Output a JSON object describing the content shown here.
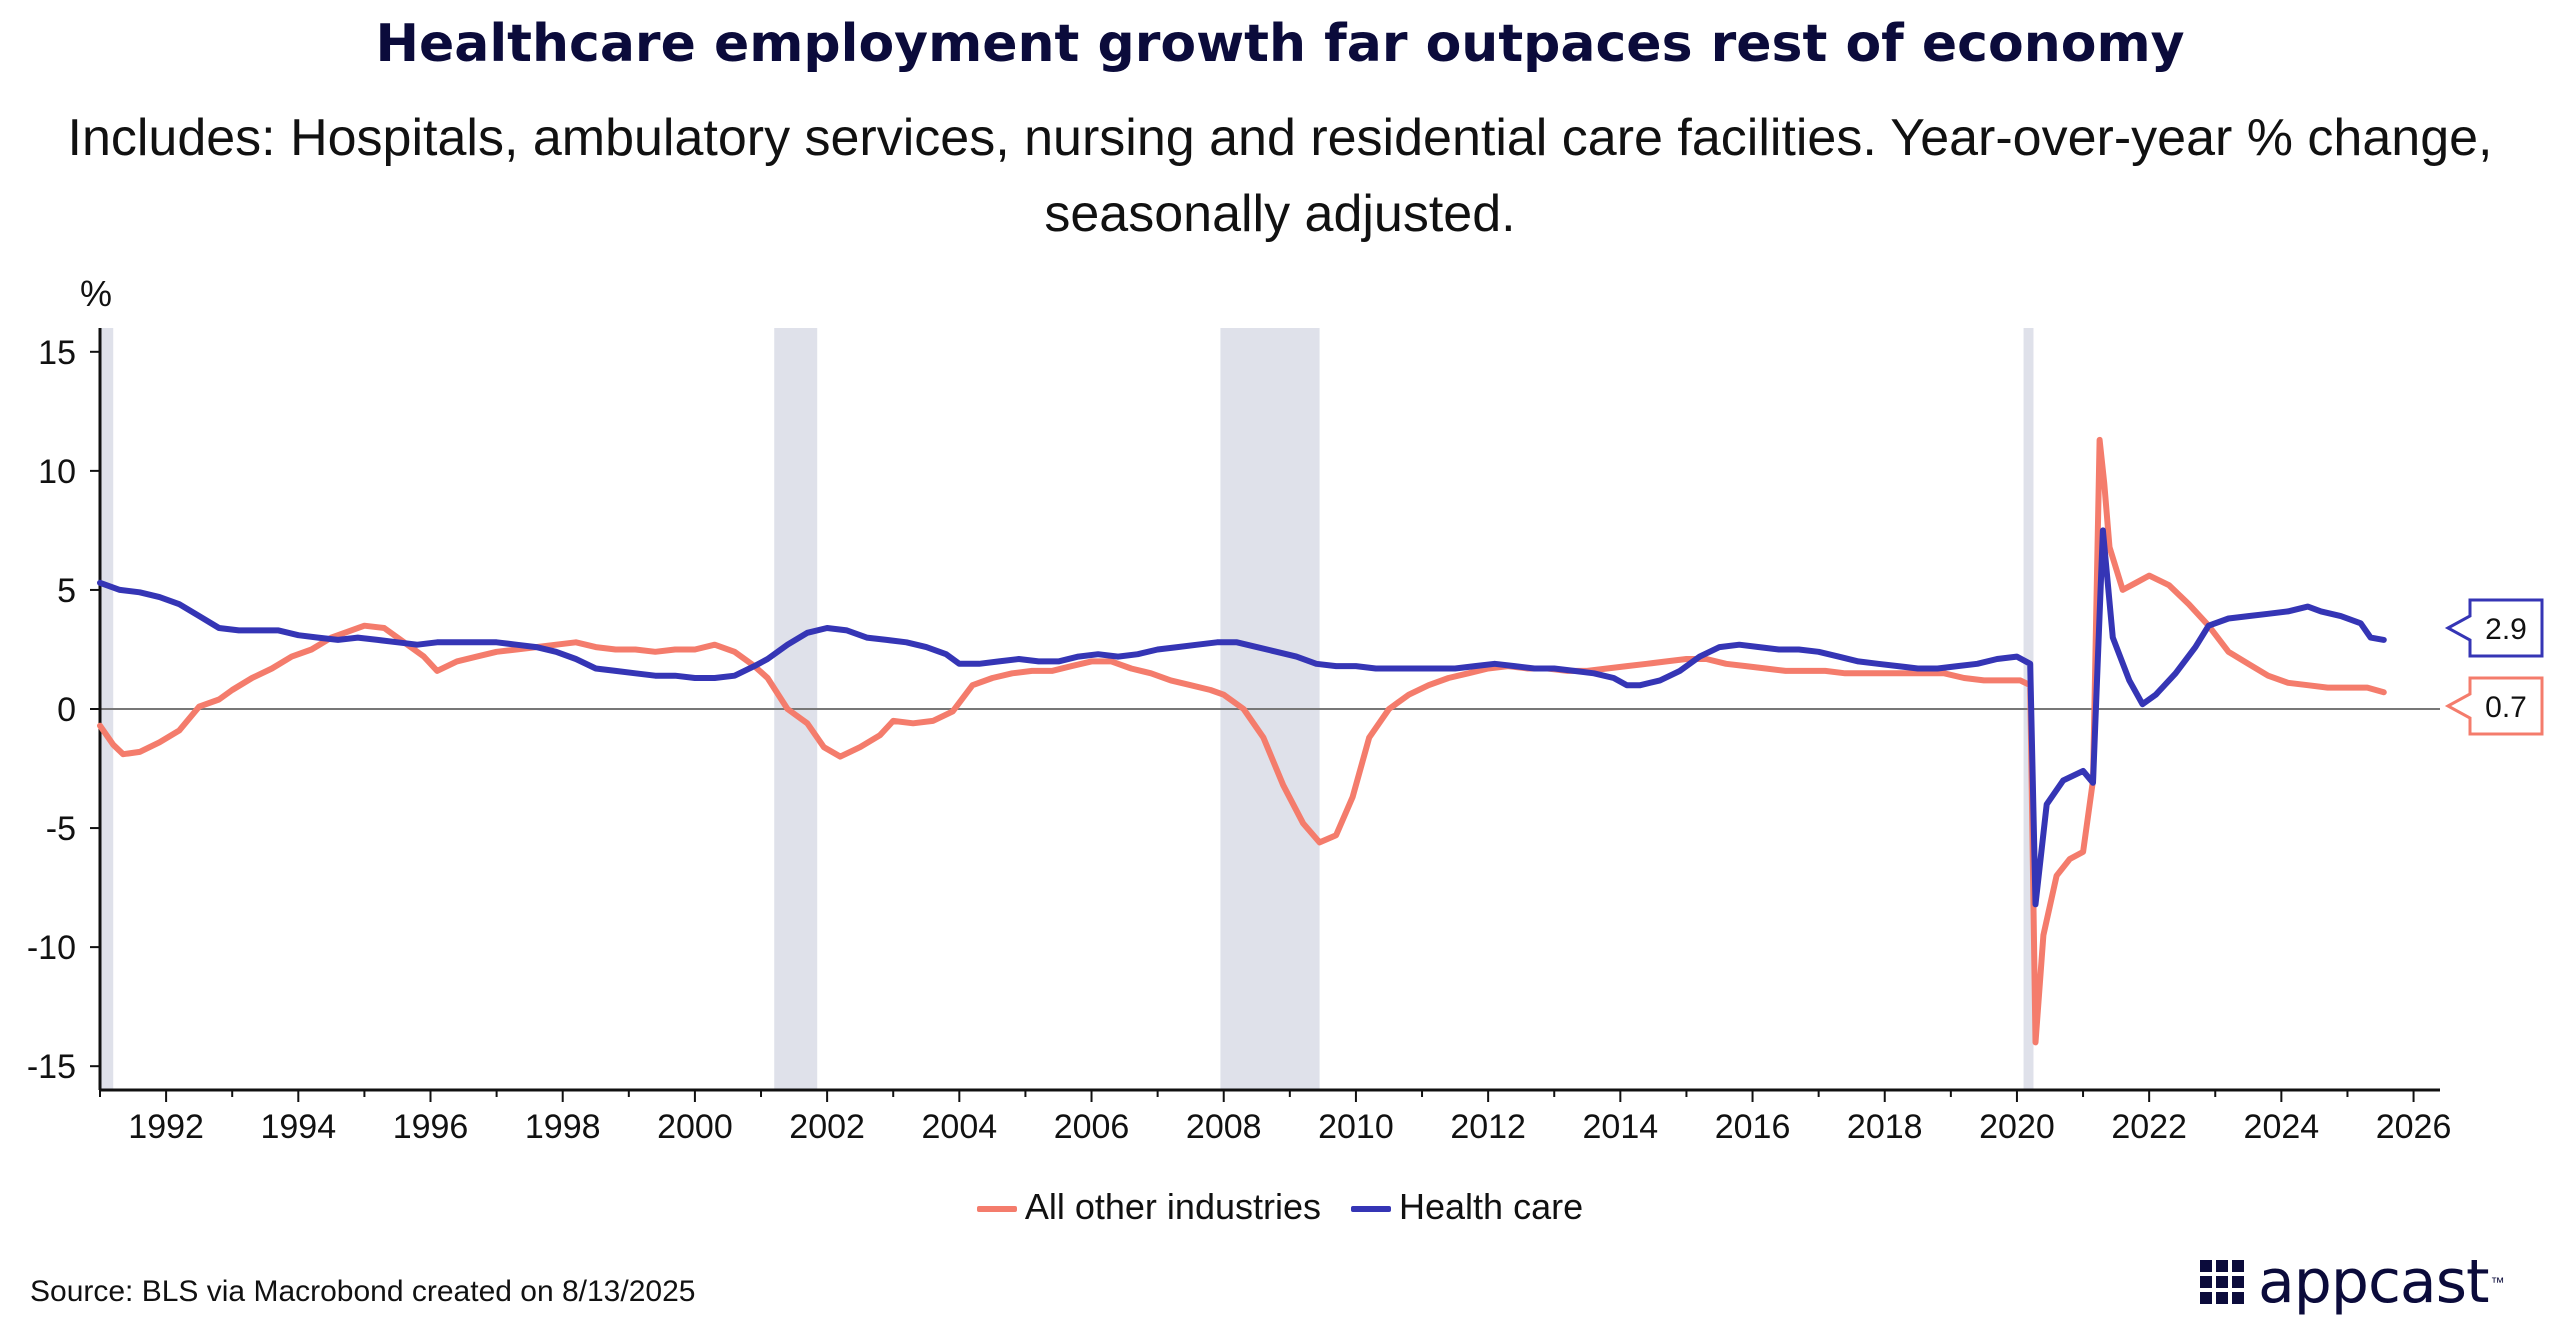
{
  "title": "Healthcare employment growth far outpaces rest of economy",
  "subtitle": "Includes: Hospitals, ambulatory services, nursing and residential care facilities. Year-over-year % change, seasonally adjusted.",
  "source": "Source: BLS via Macrobond created on 8/13/2025",
  "logo": "appcast",
  "colors": {
    "other": "#f47c6c",
    "health": "#3535b5",
    "recession": "#dfe1ea",
    "zero": "#777777"
  },
  "chart_data": {
    "type": "line",
    "y_unit": "%",
    "ylim": [
      -16,
      16
    ],
    "xlim": [
      1991.0,
      2026.4
    ],
    "y_ticks": [
      15,
      10,
      5,
      0,
      -5,
      -10,
      -15
    ],
    "x_ticks": [
      1992,
      1994,
      1996,
      1998,
      2000,
      2002,
      2004,
      2006,
      2008,
      2010,
      2012,
      2014,
      2016,
      2018,
      2020,
      2022,
      2024,
      2026
    ],
    "recessions": [
      [
        1991.0,
        1991.2
      ],
      [
        2001.2,
        2001.85
      ],
      [
        2007.95,
        2009.45
      ],
      [
        2020.1,
        2020.25
      ]
    ],
    "legend": [
      "All other industries",
      "Health care"
    ],
    "end_labels": [
      "0.7",
      "2.9"
    ],
    "series": [
      {
        "name": "All other industries",
        "color": "#f47c6c",
        "points": [
          [
            1991.0,
            -0.7
          ],
          [
            1991.2,
            -1.5
          ],
          [
            1991.35,
            -1.9
          ],
          [
            1991.6,
            -1.8
          ],
          [
            1991.9,
            -1.4
          ],
          [
            1992.2,
            -0.9
          ],
          [
            1992.5,
            0.1
          ],
          [
            1992.8,
            0.4
          ],
          [
            1993.0,
            0.8
          ],
          [
            1993.3,
            1.3
          ],
          [
            1993.6,
            1.7
          ],
          [
            1993.9,
            2.2
          ],
          [
            1994.2,
            2.5
          ],
          [
            1994.5,
            3.0
          ],
          [
            1994.8,
            3.3
          ],
          [
            1995.0,
            3.5
          ],
          [
            1995.3,
            3.4
          ],
          [
            1995.6,
            2.8
          ],
          [
            1995.9,
            2.2
          ],
          [
            1996.1,
            1.6
          ],
          [
            1996.4,
            2.0
          ],
          [
            1996.7,
            2.2
          ],
          [
            1997.0,
            2.4
          ],
          [
            1997.3,
            2.5
          ],
          [
            1997.6,
            2.6
          ],
          [
            1997.9,
            2.7
          ],
          [
            1998.2,
            2.8
          ],
          [
            1998.5,
            2.6
          ],
          [
            1998.8,
            2.5
          ],
          [
            1999.1,
            2.5
          ],
          [
            1999.4,
            2.4
          ],
          [
            1999.7,
            2.5
          ],
          [
            2000.0,
            2.5
          ],
          [
            2000.3,
            2.7
          ],
          [
            2000.6,
            2.4
          ],
          [
            2000.9,
            1.8
          ],
          [
            2001.1,
            1.3
          ],
          [
            2001.4,
            0.0
          ],
          [
            2001.7,
            -0.6
          ],
          [
            2001.95,
            -1.6
          ],
          [
            2002.2,
            -2.0
          ],
          [
            2002.5,
            -1.6
          ],
          [
            2002.8,
            -1.1
          ],
          [
            2003.0,
            -0.5
          ],
          [
            2003.3,
            -0.6
          ],
          [
            2003.6,
            -0.5
          ],
          [
            2003.9,
            -0.1
          ],
          [
            2004.2,
            1.0
          ],
          [
            2004.5,
            1.3
          ],
          [
            2004.8,
            1.5
          ],
          [
            2005.1,
            1.6
          ],
          [
            2005.4,
            1.6
          ],
          [
            2005.7,
            1.8
          ],
          [
            2006.0,
            2.0
          ],
          [
            2006.3,
            2.0
          ],
          [
            2006.6,
            1.7
          ],
          [
            2006.9,
            1.5
          ],
          [
            2007.2,
            1.2
          ],
          [
            2007.5,
            1.0
          ],
          [
            2007.8,
            0.8
          ],
          [
            2008.0,
            0.6
          ],
          [
            2008.3,
            0.0
          ],
          [
            2008.6,
            -1.2
          ],
          [
            2008.9,
            -3.2
          ],
          [
            2009.2,
            -4.8
          ],
          [
            2009.45,
            -5.6
          ],
          [
            2009.7,
            -5.3
          ],
          [
            2009.95,
            -3.7
          ],
          [
            2010.2,
            -1.2
          ],
          [
            2010.5,
            0.0
          ],
          [
            2010.8,
            0.6
          ],
          [
            2011.1,
            1.0
          ],
          [
            2011.4,
            1.3
          ],
          [
            2011.7,
            1.5
          ],
          [
            2012.0,
            1.7
          ],
          [
            2012.3,
            1.8
          ],
          [
            2012.6,
            1.7
          ],
          [
            2012.9,
            1.7
          ],
          [
            2013.2,
            1.6
          ],
          [
            2013.5,
            1.6
          ],
          [
            2013.8,
            1.7
          ],
          [
            2014.1,
            1.8
          ],
          [
            2014.4,
            1.9
          ],
          [
            2014.7,
            2.0
          ],
          [
            2015.0,
            2.1
          ],
          [
            2015.3,
            2.1
          ],
          [
            2015.6,
            1.9
          ],
          [
            2015.9,
            1.8
          ],
          [
            2016.2,
            1.7
          ],
          [
            2016.5,
            1.6
          ],
          [
            2016.8,
            1.6
          ],
          [
            2017.1,
            1.6
          ],
          [
            2017.4,
            1.5
          ],
          [
            2017.7,
            1.5
          ],
          [
            2018.0,
            1.5
          ],
          [
            2018.3,
            1.5
          ],
          [
            2018.6,
            1.5
          ],
          [
            2018.9,
            1.5
          ],
          [
            2019.2,
            1.3
          ],
          [
            2019.5,
            1.2
          ],
          [
            2019.8,
            1.2
          ],
          [
            2020.05,
            1.2
          ],
          [
            2020.2,
            1.0
          ],
          [
            2020.28,
            -14.0
          ],
          [
            2020.4,
            -9.5
          ],
          [
            2020.6,
            -7.0
          ],
          [
            2020.8,
            -6.3
          ],
          [
            2021.0,
            -6.0
          ],
          [
            2021.15,
            -3.0
          ],
          [
            2021.25,
            11.3
          ],
          [
            2021.32,
            9.5
          ],
          [
            2021.4,
            6.8
          ],
          [
            2021.6,
            5.0
          ],
          [
            2021.8,
            5.3
          ],
          [
            2022.0,
            5.6
          ],
          [
            2022.3,
            5.2
          ],
          [
            2022.6,
            4.4
          ],
          [
            2022.9,
            3.5
          ],
          [
            2023.2,
            2.4
          ],
          [
            2023.5,
            1.9
          ],
          [
            2023.8,
            1.4
          ],
          [
            2024.1,
            1.1
          ],
          [
            2024.4,
            1.0
          ],
          [
            2024.7,
            0.9
          ],
          [
            2025.0,
            0.9
          ],
          [
            2025.3,
            0.9
          ],
          [
            2025.55,
            0.7
          ]
        ]
      },
      {
        "name": "Health care",
        "color": "#3535b5",
        "points": [
          [
            1991.0,
            5.3
          ],
          [
            1991.3,
            5.0
          ],
          [
            1991.6,
            4.9
          ],
          [
            1991.9,
            4.7
          ],
          [
            1992.2,
            4.4
          ],
          [
            1992.5,
            3.9
          ],
          [
            1992.8,
            3.4
          ],
          [
            1993.1,
            3.3
          ],
          [
            1993.4,
            3.3
          ],
          [
            1993.7,
            3.3
          ],
          [
            1994.0,
            3.1
          ],
          [
            1994.3,
            3.0
          ],
          [
            1994.6,
            2.9
          ],
          [
            1994.9,
            3.0
          ],
          [
            1995.2,
            2.9
          ],
          [
            1995.5,
            2.8
          ],
          [
            1995.8,
            2.7
          ],
          [
            1996.1,
            2.8
          ],
          [
            1996.4,
            2.8
          ],
          [
            1996.7,
            2.8
          ],
          [
            1997.0,
            2.8
          ],
          [
            1997.3,
            2.7
          ],
          [
            1997.6,
            2.6
          ],
          [
            1997.9,
            2.4
          ],
          [
            1998.2,
            2.1
          ],
          [
            1998.5,
            1.7
          ],
          [
            1998.8,
            1.6
          ],
          [
            1999.1,
            1.5
          ],
          [
            1999.4,
            1.4
          ],
          [
            1999.7,
            1.4
          ],
          [
            2000.0,
            1.3
          ],
          [
            2000.3,
            1.3
          ],
          [
            2000.6,
            1.4
          ],
          [
            2000.9,
            1.8
          ],
          [
            2001.1,
            2.1
          ],
          [
            2001.4,
            2.7
          ],
          [
            2001.7,
            3.2
          ],
          [
            2002.0,
            3.4
          ],
          [
            2002.3,
            3.3
          ],
          [
            2002.6,
            3.0
          ],
          [
            2002.9,
            2.9
          ],
          [
            2003.2,
            2.8
          ],
          [
            2003.5,
            2.6
          ],
          [
            2003.8,
            2.3
          ],
          [
            2004.0,
            1.9
          ],
          [
            2004.3,
            1.9
          ],
          [
            2004.6,
            2.0
          ],
          [
            2004.9,
            2.1
          ],
          [
            2005.2,
            2.0
          ],
          [
            2005.5,
            2.0
          ],
          [
            2005.8,
            2.2
          ],
          [
            2006.1,
            2.3
          ],
          [
            2006.4,
            2.2
          ],
          [
            2006.7,
            2.3
          ],
          [
            2007.0,
            2.5
          ],
          [
            2007.3,
            2.6
          ],
          [
            2007.6,
            2.7
          ],
          [
            2007.9,
            2.8
          ],
          [
            2008.2,
            2.8
          ],
          [
            2008.5,
            2.6
          ],
          [
            2008.8,
            2.4
          ],
          [
            2009.1,
            2.2
          ],
          [
            2009.4,
            1.9
          ],
          [
            2009.7,
            1.8
          ],
          [
            2010.0,
            1.8
          ],
          [
            2010.3,
            1.7
          ],
          [
            2010.6,
            1.7
          ],
          [
            2010.9,
            1.7
          ],
          [
            2011.2,
            1.7
          ],
          [
            2011.5,
            1.7
          ],
          [
            2011.8,
            1.8
          ],
          [
            2012.1,
            1.9
          ],
          [
            2012.4,
            1.8
          ],
          [
            2012.7,
            1.7
          ],
          [
            2013.0,
            1.7
          ],
          [
            2013.3,
            1.6
          ],
          [
            2013.6,
            1.5
          ],
          [
            2013.9,
            1.3
          ],
          [
            2014.1,
            1.0
          ],
          [
            2014.3,
            1.0
          ],
          [
            2014.6,
            1.2
          ],
          [
            2014.9,
            1.6
          ],
          [
            2015.2,
            2.2
          ],
          [
            2015.5,
            2.6
          ],
          [
            2015.8,
            2.7
          ],
          [
            2016.1,
            2.6
          ],
          [
            2016.4,
            2.5
          ],
          [
            2016.7,
            2.5
          ],
          [
            2017.0,
            2.4
          ],
          [
            2017.3,
            2.2
          ],
          [
            2017.6,
            2.0
          ],
          [
            2017.9,
            1.9
          ],
          [
            2018.2,
            1.8
          ],
          [
            2018.5,
            1.7
          ],
          [
            2018.8,
            1.7
          ],
          [
            2019.1,
            1.8
          ],
          [
            2019.4,
            1.9
          ],
          [
            2019.7,
            2.1
          ],
          [
            2020.0,
            2.2
          ],
          [
            2020.2,
            1.9
          ],
          [
            2020.28,
            -8.2
          ],
          [
            2020.45,
            -4.0
          ],
          [
            2020.7,
            -3.0
          ],
          [
            2021.0,
            -2.6
          ],
          [
            2021.15,
            -3.1
          ],
          [
            2021.3,
            7.5
          ],
          [
            2021.45,
            3.0
          ],
          [
            2021.7,
            1.2
          ],
          [
            2021.9,
            0.2
          ],
          [
            2022.1,
            0.6
          ],
          [
            2022.4,
            1.5
          ],
          [
            2022.7,
            2.6
          ],
          [
            2022.9,
            3.5
          ],
          [
            2023.2,
            3.8
          ],
          [
            2023.5,
            3.9
          ],
          [
            2023.8,
            4.0
          ],
          [
            2024.1,
            4.1
          ],
          [
            2024.4,
            4.3
          ],
          [
            2024.6,
            4.1
          ],
          [
            2024.9,
            3.9
          ],
          [
            2025.2,
            3.6
          ],
          [
            2025.35,
            3.0
          ],
          [
            2025.55,
            2.9
          ]
        ]
      }
    ]
  }
}
